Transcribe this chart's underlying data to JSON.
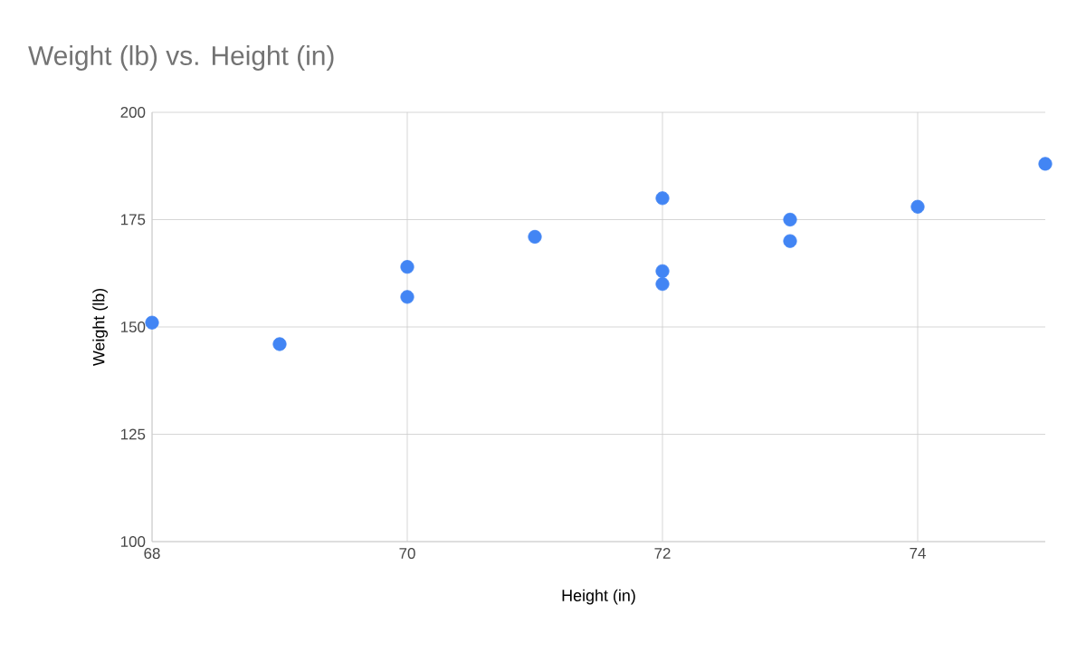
{
  "chart_data": {
    "type": "scatter",
    "title": "Weight (lb) vs. Height (in)",
    "xlabel": "Height (in)",
    "ylabel": "Weight (lb)",
    "x": [
      68,
      69,
      70,
      70,
      71,
      72,
      72,
      72,
      73,
      73,
      74,
      75
    ],
    "values": [
      151,
      146,
      164,
      157,
      171,
      180,
      163,
      160,
      175,
      170,
      178,
      188
    ],
    "color": "#4285f4",
    "grid": true,
    "xlim": [
      68,
      75
    ],
    "xticks": [
      68,
      70,
      72,
      74
    ],
    "ylim": [
      100,
      200
    ],
    "yticks": [
      100,
      125,
      150,
      175,
      200
    ]
  }
}
